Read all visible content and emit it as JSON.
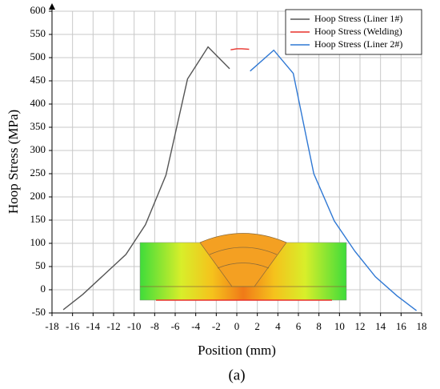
{
  "chart_data": {
    "type": "line",
    "xlabel": "Position (mm)",
    "ylabel": "Hoop Stress (MPa)",
    "caption": "(a)",
    "xlim": [
      -18,
      18
    ],
    "xticks": [
      -18,
      -16,
      -14,
      -12,
      -10,
      -8,
      -6,
      -4,
      -2,
      0,
      2,
      4,
      6,
      8,
      10,
      12,
      14,
      16,
      18
    ],
    "ylim": [
      -50,
      600
    ],
    "yticks": [
      -50,
      0,
      50,
      100,
      150,
      200,
      250,
      300,
      350,
      400,
      450,
      500,
      550,
      600
    ],
    "grid": true,
    "legend": "upper right",
    "series": [
      {
        "name": "Hoop Stress (Liner 1#)",
        "color": "#555555",
        "x": [
          -16.9,
          -15,
          -10.8,
          -8.9,
          -6.9,
          -4.8,
          -2.8,
          -0.7
        ],
        "values": [
          -43,
          -10,
          76,
          140,
          247,
          454,
          523,
          476
        ]
      },
      {
        "name": "Hoop Stress (Welding)",
        "color": "#e8302a",
        "x": [
          -0.6,
          0,
          0.5,
          1.2
        ],
        "values": [
          517,
          519,
          519,
          518
        ]
      },
      {
        "name": "Hoop Stress (Liner 2#)",
        "color": "#2f78d4",
        "x": [
          1.3,
          3.6,
          5.5,
          7.5,
          9.5,
          11.5,
          13.5,
          15.6,
          17.5
        ],
        "values": [
          471,
          516,
          466,
          250,
          148,
          83,
          28,
          -13,
          -45
        ]
      }
    ]
  }
}
